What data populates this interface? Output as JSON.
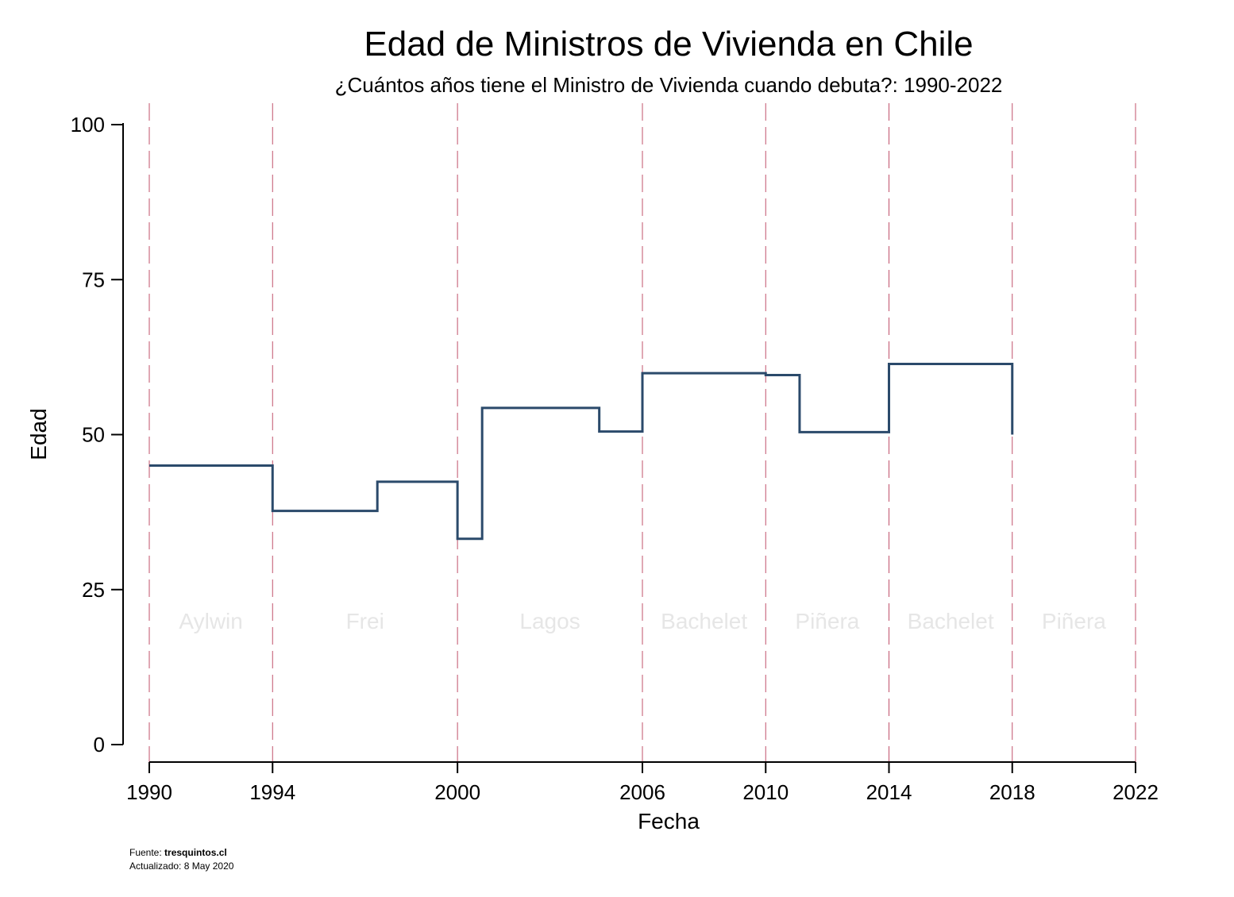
{
  "chart_data": {
    "type": "line",
    "step": true,
    "title": "Edad de Ministros de Vivienda en Chile",
    "subtitle": "¿Cuántos años tiene el Ministro de Vivienda cuando debuta?: 1990-2022",
    "xlabel": "Fecha",
    "ylabel": "Edad",
    "xlim": [
      1990,
      2022
    ],
    "ylim": [
      0,
      100
    ],
    "x_ticks": [
      "1990",
      "1994",
      "2000",
      "2006",
      "2010",
      "2014",
      "2018",
      "2022"
    ],
    "y_ticks": [
      "0",
      "25",
      "50",
      "75",
      "100"
    ],
    "series": [
      {
        "color": "#2b4a6b",
        "points": [
          {
            "x": 1990.0,
            "y": 45
          },
          {
            "x": 1994.0,
            "y": 37.7
          },
          {
            "x": 1997.4,
            "y": 42.4
          },
          {
            "x": 2000.0,
            "y": 33.2
          },
          {
            "x": 2000.8,
            "y": 54.3
          },
          {
            "x": 2004.6,
            "y": 50.5
          },
          {
            "x": 2006.0,
            "y": 59.9
          },
          {
            "x": 2010.0,
            "y": 59.6
          },
          {
            "x": 2011.1,
            "y": 50.4
          },
          {
            "x": 2014.0,
            "y": 61.4
          },
          {
            "x": 2018.0,
            "y": 50.0
          }
        ]
      }
    ],
    "reference_lines": {
      "x": [
        "1990",
        "1994",
        "2000",
        "2006",
        "2010",
        "2014",
        "2018",
        "2022"
      ],
      "color": "#c0506a",
      "style": "dashed"
    },
    "periods": [
      {
        "label": "Aylwin",
        "start": 1990,
        "end": 1994
      },
      {
        "label": "Frei",
        "start": 1994,
        "end": 2000
      },
      {
        "label": "Lagos",
        "start": 2000,
        "end": 2006
      },
      {
        "label": "Bachelet",
        "start": 2006,
        "end": 2010
      },
      {
        "label": "Piñera",
        "start": 2010,
        "end": 2014
      },
      {
        "label": "Bachelet",
        "start": 2014,
        "end": 2018
      },
      {
        "label": "Piñera",
        "start": 2018,
        "end": 2022
      }
    ],
    "period_label_color": "#e6e6e6",
    "grid": false,
    "legend": "none"
  },
  "footer": {
    "source_prefix": "Fuente: ",
    "source_name": "tresquintos.cl",
    "updated": "Actualizado:  8 May 2020"
  }
}
